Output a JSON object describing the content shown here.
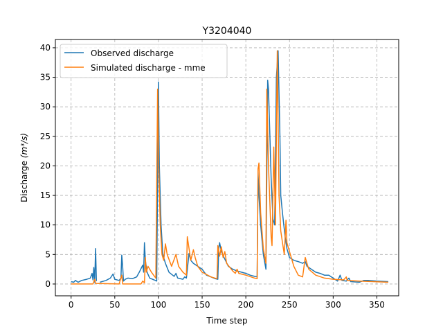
{
  "chart_data": {
    "type": "line",
    "title": "Y3204040",
    "xlabel": "Time step",
    "ylabel": "Discharge",
    "ylabel_unit": "(m³/s)",
    "xlim": [
      -18,
      375
    ],
    "ylim": [
      -2,
      41.4
    ],
    "xticks": [
      0,
      50,
      100,
      150,
      200,
      250,
      300,
      350
    ],
    "yticks": [
      0,
      5,
      10,
      15,
      20,
      25,
      30,
      35,
      40
    ],
    "grid": true,
    "legend": "top-left",
    "series": [
      {
        "name": "Observed discharge",
        "color": "#1f77b4",
        "points": [
          [
            0,
            0.4
          ],
          [
            3,
            0.3
          ],
          [
            5,
            0.6
          ],
          [
            8,
            0.3
          ],
          [
            12,
            0.6
          ],
          [
            18,
            0.8
          ],
          [
            22,
            1.0
          ],
          [
            24,
            1.8
          ],
          [
            25,
            0.7
          ],
          [
            26,
            2.8
          ],
          [
            27,
            0.3
          ],
          [
            28,
            6.0
          ],
          [
            29,
            0.5
          ],
          null,
          [
            33,
            0.3
          ],
          [
            40,
            0.6
          ],
          [
            45,
            1.0
          ],
          [
            48,
            1.7
          ],
          [
            50,
            0.8
          ],
          [
            55,
            0.6
          ],
          [
            57,
            1.0
          ],
          [
            58,
            4.9
          ],
          [
            59,
            3.0
          ],
          [
            60,
            0.5
          ],
          [
            62,
            0.8
          ],
          [
            65,
            1.0
          ],
          [
            70,
            0.9
          ],
          [
            75,
            1.2
          ],
          [
            78,
            2.0
          ],
          [
            82,
            3.2
          ],
          [
            83,
            2.0
          ],
          [
            84,
            7.0
          ],
          [
            85,
            4.0
          ],
          [
            87,
            2.0
          ],
          [
            90,
            1.0
          ],
          [
            95,
            0.7
          ],
          [
            98,
            0.5
          ],
          [
            99,
            18
          ],
          [
            100,
            34.2
          ],
          [
            101,
            20
          ],
          [
            103,
            10
          ],
          [
            105,
            5
          ],
          [
            108,
            3.5
          ],
          [
            112,
            2.0
          ],
          [
            118,
            1.3
          ],
          [
            120,
            1.8
          ],
          [
            122,
            1.0
          ],
          [
            128,
            0.8
          ],
          [
            130,
            1.2
          ],
          [
            132,
            1.0
          ],
          [
            135,
            5.2
          ],
          [
            137,
            4.0
          ],
          [
            140,
            3.5
          ],
          [
            145,
            3.0
          ],
          [
            150,
            2.5
          ],
          [
            155,
            1.5
          ],
          [
            160,
            1.2
          ],
          [
            165,
            0.9
          ],
          [
            168,
            0.8
          ],
          [
            169,
            6.0
          ],
          [
            170,
            7.0
          ],
          [
            172,
            5.5
          ],
          [
            175,
            4.5
          ],
          [
            180,
            3.0
          ],
          [
            185,
            2.5
          ],
          [
            190,
            2.2
          ],
          [
            195,
            2.0
          ],
          [
            200,
            1.8
          ],
          [
            205,
            1.5
          ],
          [
            210,
            1.3
          ],
          [
            213,
            1.2
          ],
          [
            214,
            19
          ],
          [
            215,
            15
          ],
          [
            217,
            10
          ],
          [
            220,
            5
          ],
          [
            223,
            2.5
          ],
          [
            225,
            34.5
          ],
          [
            226,
            33
          ],
          [
            229,
            18
          ],
          [
            231,
            11
          ],
          [
            233,
            10
          ],
          [
            235,
            35
          ],
          [
            237,
            39.5
          ],
          [
            239,
            25
          ],
          [
            240,
            15
          ],
          [
            242,
            12
          ],
          [
            245,
            8
          ],
          [
            247,
            6
          ],
          [
            250,
            4.5
          ],
          [
            255,
            4.0
          ],
          [
            260,
            3.8
          ],
          [
            265,
            3.5
          ],
          [
            268,
            3.8
          ],
          [
            270,
            3.0
          ],
          [
            275,
            2.5
          ],
          [
            280,
            2.0
          ],
          [
            285,
            1.8
          ],
          [
            290,
            1.5
          ],
          [
            295,
            1.5
          ],
          [
            300,
            1.0
          ],
          [
            305,
            0.5
          ],
          [
            308,
            1.5
          ],
          [
            310,
            0.6
          ],
          [
            315,
            0.5
          ],
          [
            318,
            1.0
          ],
          [
            320,
            0.4
          ],
          [
            330,
            0.3
          ],
          [
            335,
            0.6
          ],
          [
            340,
            0.6
          ],
          [
            350,
            0.5
          ],
          [
            363,
            0.4
          ]
        ]
      },
      {
        "name": "Simulated discharge - mme",
        "color": "#ff7f0e",
        "points": [
          [
            0,
            0.0
          ],
          [
            25,
            0.0
          ],
          [
            27,
            0.8
          ],
          [
            28,
            0.1
          ],
          [
            55,
            0.0
          ],
          [
            58,
            1.5
          ],
          [
            59,
            0.0
          ],
          [
            80,
            0.0
          ],
          [
            82,
            0.5
          ],
          [
            84,
            0.2
          ],
          [
            85,
            4.5
          ],
          [
            86,
            2.0
          ],
          [
            88,
            3.0
          ],
          [
            92,
            2.0
          ],
          [
            97,
            1.0
          ],
          [
            99,
            33
          ],
          [
            100,
            22
          ],
          [
            102,
            10
          ],
          [
            104,
            5
          ],
          [
            106,
            4
          ],
          [
            108,
            6.8
          ],
          [
            110,
            5
          ],
          [
            115,
            3
          ],
          [
            120,
            5.0
          ],
          [
            123,
            3
          ],
          [
            128,
            2.0
          ],
          [
            132,
            1.5
          ],
          [
            133,
            8.0
          ],
          [
            135,
            6.0
          ],
          [
            137,
            4
          ],
          [
            140,
            5.8
          ],
          [
            142,
            4.5
          ],
          [
            145,
            3
          ],
          [
            150,
            2
          ],
          [
            160,
            1.2
          ],
          [
            167,
            0.9
          ],
          [
            168,
            6.5
          ],
          [
            170,
            4.7
          ],
          [
            172,
            6.3
          ],
          [
            174,
            4.5
          ],
          [
            176,
            5.5
          ],
          [
            178,
            3.5
          ],
          [
            185,
            2.2
          ],
          [
            188,
            1.8
          ],
          [
            190,
            2.5
          ],
          [
            192,
            1.8
          ],
          [
            200,
            1.5
          ],
          [
            210,
            1.0
          ],
          [
            213,
            0.9
          ],
          [
            214,
            19.5
          ],
          [
            215,
            20.5
          ],
          [
            217,
            12
          ],
          [
            220,
            6
          ],
          [
            223,
            3.5
          ],
          [
            224,
            33
          ],
          [
            226,
            20
          ],
          [
            229,
            8
          ],
          [
            230,
            6.5
          ],
          [
            232,
            23.2
          ],
          [
            234,
            10
          ],
          [
            236,
            39.5
          ],
          [
            238,
            15
          ],
          [
            240,
            9
          ],
          [
            242,
            7
          ],
          [
            244,
            5
          ],
          [
            246,
            10.8
          ],
          [
            247,
            7
          ],
          [
            250,
            5.5
          ],
          [
            255,
            3.0
          ],
          [
            260,
            1.5
          ],
          [
            265,
            1.2
          ],
          [
            268,
            4.5
          ],
          [
            272,
            2.5
          ],
          [
            280,
            1.5
          ],
          [
            290,
            1.0
          ],
          [
            300,
            0.8
          ],
          [
            312,
            0.7
          ],
          [
            315,
            1.2
          ],
          [
            316,
            0.6
          ],
          [
            330,
            0.5
          ],
          [
            363,
            0.3
          ]
        ]
      }
    ]
  }
}
